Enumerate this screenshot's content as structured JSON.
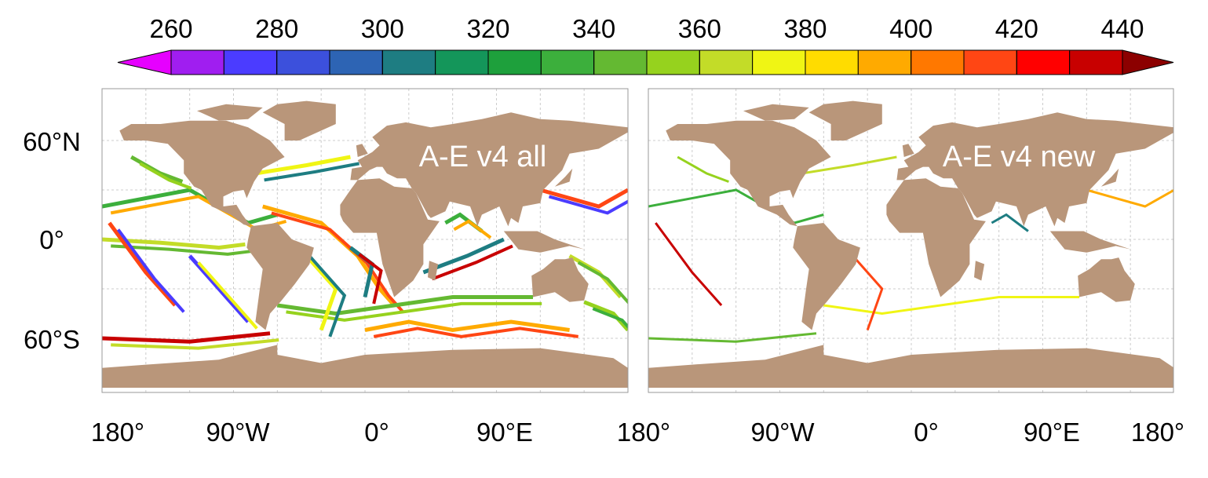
{
  "colorbar": {
    "ticks": [
      260,
      280,
      300,
      320,
      340,
      360,
      380,
      400,
      420,
      440
    ],
    "lim": [
      260,
      440
    ],
    "colors": [
      "#a01ef0",
      "#4b3cff",
      "#3c50dc",
      "#2d64b4",
      "#1e7d82",
      "#14965a",
      "#1ea03c",
      "#3caf3c",
      "#64b932",
      "#96d21e",
      "#c3dc28",
      "#f0f514",
      "#ffdc00",
      "#ffaa00",
      "#ff7800",
      "#ff4614",
      "#ff0000",
      "#c80000"
    ],
    "under_color": "#e600ff",
    "over_color": "#8c0000"
  },
  "panels": [
    {
      "label": "A-E v4 all"
    },
    {
      "label": "A-E v4 new"
    }
  ],
  "lat_labels": [
    "60°N",
    "0°",
    "60°S"
  ],
  "lon_labels": [
    "180°",
    "90°W",
    "0°",
    "90°E",
    "180°",
    "90°W",
    "0°",
    "90°E",
    "180°"
  ]
}
